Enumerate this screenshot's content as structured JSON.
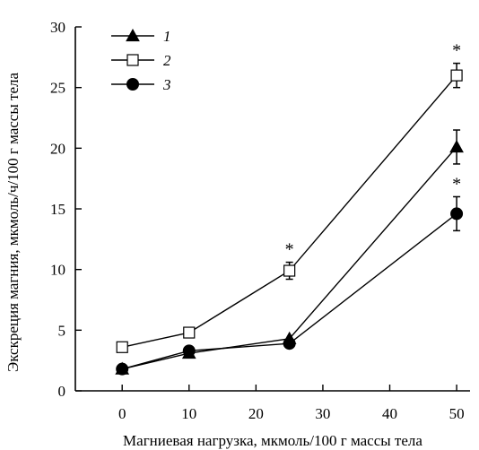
{
  "chart_data": {
    "type": "line",
    "title": "",
    "xlabel": "Магниевая нагрузка, мкмоль/100 г массы тела",
    "ylabel": "Экскреция магния, мкмоль/ч/100 г массы тела",
    "xlim": [
      -7,
      52
    ],
    "ylim": [
      0,
      30
    ],
    "xticks": [
      0,
      10,
      20,
      30,
      40,
      50
    ],
    "yticks": [
      0,
      5,
      10,
      15,
      20,
      25,
      30
    ],
    "x": [
      0,
      10,
      25,
      50
    ],
    "grid": false,
    "legend_position": "top-left",
    "series": [
      {
        "name": "1",
        "marker": "filled-triangle",
        "values": [
          1.8,
          3.1,
          4.3,
          20.1
        ],
        "errors": [
          0,
          0,
          0,
          1.4
        ],
        "significant": [
          false,
          false,
          false,
          false
        ]
      },
      {
        "name": "2",
        "marker": "open-square",
        "values": [
          3.6,
          4.8,
          9.9,
          26.0
        ],
        "errors": [
          0,
          0,
          0.7,
          1.0
        ],
        "significant": [
          false,
          false,
          true,
          true
        ]
      },
      {
        "name": "3",
        "marker": "filled-circle",
        "values": [
          1.8,
          3.3,
          3.9,
          14.6
        ],
        "errors": [
          0,
          0,
          0,
          1.4
        ],
        "significant": [
          false,
          false,
          false,
          true
        ]
      }
    ],
    "significance_marker": "*"
  }
}
